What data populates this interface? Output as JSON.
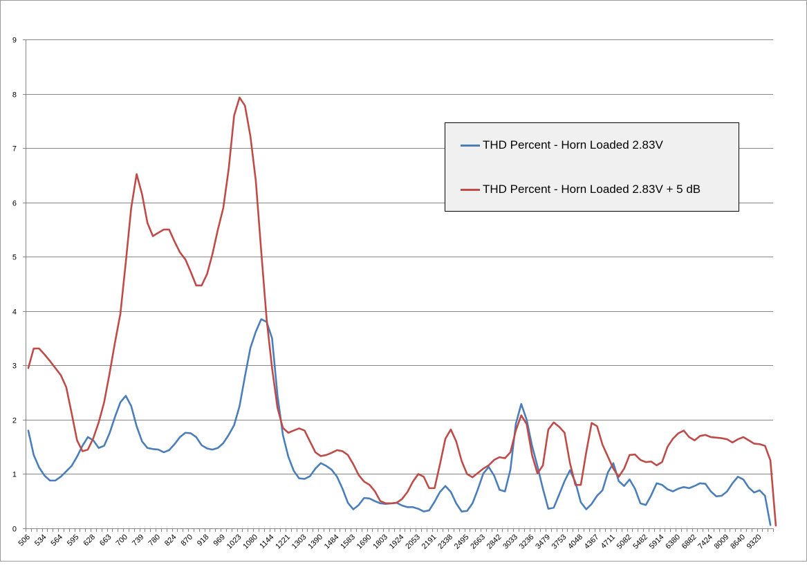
{
  "chart_data": {
    "type": "line",
    "title": "",
    "xlabel": "",
    "ylabel": "",
    "ylim": [
      0,
      9
    ],
    "yticks": [
      "0",
      "1",
      "2",
      "3",
      "4",
      "5",
      "6",
      "7",
      "8",
      "9"
    ],
    "grid": "horizontal",
    "legend_position": "upper-right",
    "x_tick_labels": [
      "506",
      "534",
      "564",
      "595",
      "628",
      "663",
      "700",
      "739",
      "780",
      "824",
      "870",
      "918",
      "969",
      "1023",
      "1080",
      "1144",
      "1221",
      "1303",
      "1390",
      "1484",
      "1583",
      "1690",
      "1803",
      "1924",
      "2053",
      "2191",
      "2338",
      "2495",
      "2663",
      "2842",
      "3033",
      "3236",
      "3479",
      "3753",
      "4048",
      "4367",
      "4711",
      "5082",
      "5482",
      "5914",
      "6380",
      "6882",
      "7424",
      "8009",
      "8640",
      "9320"
    ],
    "series": [
      {
        "name": "THD Percent - Horn Loaded 2.83V",
        "color": "#4a7ebb",
        "values": [
          1.8,
          1.35,
          1.12,
          0.97,
          0.88,
          0.88,
          0.95,
          1.05,
          1.15,
          1.32,
          1.52,
          1.68,
          1.62,
          1.48,
          1.52,
          1.75,
          2.05,
          2.32,
          2.44,
          2.25,
          1.88,
          1.6,
          1.48,
          1.46,
          1.45,
          1.4,
          1.44,
          1.55,
          1.68,
          1.76,
          1.75,
          1.68,
          1.53,
          1.47,
          1.45,
          1.48,
          1.57,
          1.72,
          1.9,
          2.25,
          2.8,
          3.32,
          3.62,
          3.85,
          3.8,
          3.5,
          2.45,
          1.72,
          1.32,
          1.06,
          0.92,
          0.91,
          0.96,
          1.1,
          1.2,
          1.15,
          1.08,
          0.95,
          0.73,
          0.47,
          0.35,
          0.43,
          0.56,
          0.55,
          0.5,
          0.46,
          0.45,
          0.46,
          0.47,
          0.42,
          0.39,
          0.39,
          0.36,
          0.31,
          0.33,
          0.49,
          0.67,
          0.78,
          0.67,
          0.46,
          0.31,
          0.32,
          0.46,
          0.72,
          1.01,
          1.13,
          0.97,
          0.71,
          0.68,
          1.08,
          1.92,
          2.29,
          2.0,
          1.52,
          1.14,
          0.73,
          0.36,
          0.38,
          0.62,
          0.87,
          1.07,
          0.85,
          0.48,
          0.35,
          0.45,
          0.6,
          0.7,
          1.03,
          1.2,
          0.87,
          0.78,
          0.9,
          0.73,
          0.46,
          0.43,
          0.61,
          0.83,
          0.8,
          0.72,
          0.68,
          0.73,
          0.76,
          0.74,
          0.78,
          0.83,
          0.82,
          0.68,
          0.59,
          0.6,
          0.68,
          0.83,
          0.95,
          0.9,
          0.75,
          0.66,
          0.7,
          0.6,
          0.06
        ]
      },
      {
        "name": "THD Percent - Horn Loaded 2.83V + 5 dB",
        "color": "#be4b48",
        "values": [
          2.95,
          3.31,
          3.31,
          3.2,
          3.08,
          2.95,
          2.82,
          2.6,
          2.12,
          1.62,
          1.42,
          1.45,
          1.66,
          1.95,
          2.32,
          2.85,
          3.42,
          3.95,
          4.9,
          5.9,
          6.52,
          6.15,
          5.62,
          5.38,
          5.44,
          5.5,
          5.5,
          5.28,
          5.08,
          4.95,
          4.72,
          4.47,
          4.47,
          4.68,
          5.05,
          5.5,
          5.9,
          6.62,
          7.6,
          7.93,
          7.78,
          7.22,
          6.4,
          5.1,
          3.85,
          2.95,
          2.22,
          1.85,
          1.76,
          1.8,
          1.84,
          1.8,
          1.6,
          1.4,
          1.33,
          1.35,
          1.39,
          1.44,
          1.42,
          1.35,
          1.18,
          0.98,
          0.86,
          0.8,
          0.68,
          0.5,
          0.46,
          0.46,
          0.47,
          0.54,
          0.67,
          0.86,
          1.0,
          0.95,
          0.74,
          0.74,
          1.18,
          1.65,
          1.82,
          1.6,
          1.24,
          1.0,
          0.94,
          1.02,
          1.1,
          1.16,
          1.26,
          1.31,
          1.29,
          1.4,
          1.8,
          2.08,
          1.92,
          1.35,
          1.01,
          1.16,
          1.82,
          1.95,
          1.87,
          1.76,
          1.2,
          0.8,
          0.8,
          1.4,
          1.94,
          1.88,
          1.54,
          1.32,
          1.1,
          0.95,
          1.1,
          1.35,
          1.36,
          1.26,
          1.22,
          1.23,
          1.16,
          1.22,
          1.5,
          1.65,
          1.75,
          1.8,
          1.68,
          1.62,
          1.7,
          1.72,
          1.68,
          1.67,
          1.66,
          1.64,
          1.58,
          1.64,
          1.68,
          1.62,
          1.56,
          1.55,
          1.52,
          1.25,
          0.05
        ]
      }
    ]
  }
}
